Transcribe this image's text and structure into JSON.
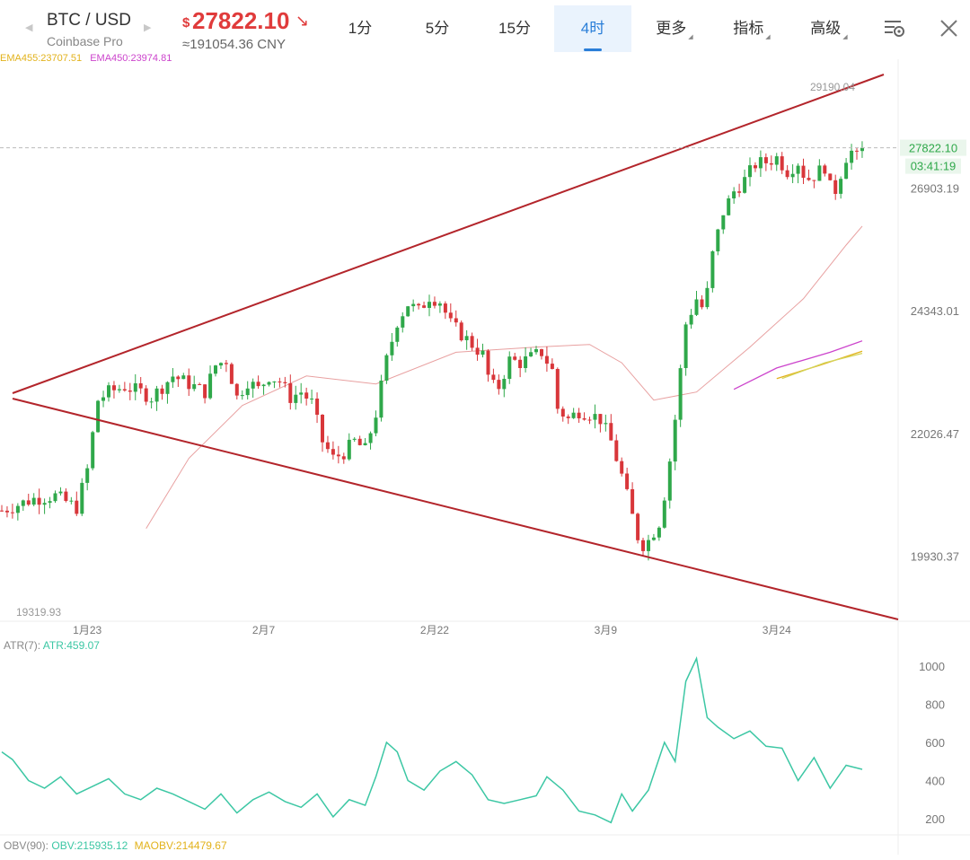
{
  "header": {
    "pair": "BTC / USD",
    "exchange": "Coinbase Pro",
    "price_currency": "$",
    "price": "27822.10",
    "price_direction": "down",
    "price_cny": "≈191054.36 CNY",
    "tabs": [
      {
        "label": "1分",
        "active": false,
        "dropdown": false
      },
      {
        "label": "5分",
        "active": false,
        "dropdown": false
      },
      {
        "label": "15分",
        "active": false,
        "dropdown": false
      },
      {
        "label": "4时",
        "active": true,
        "dropdown": false
      },
      {
        "label": "更多",
        "active": false,
        "dropdown": true
      },
      {
        "label": "指标",
        "active": false,
        "dropdown": true
      },
      {
        "label": "高级",
        "active": false,
        "dropdown": true
      }
    ],
    "icons": [
      "chart-settings-icon",
      "close-icon"
    ]
  },
  "colors": {
    "up": "#2fa84a",
    "down": "#d8363a",
    "accent": "#2a7ed8",
    "trendline": "#b3252b",
    "ema_slow": "#e8a0a0",
    "ema_a": "#e2b21b",
    "ema_b": "#cc44cc",
    "atr": "#3cc7a4"
  },
  "chart_data": [
    {
      "type": "candlestick",
      "title": "",
      "ema_labels": [
        "EMA455:23707.51",
        "EMA450:23974.81"
      ],
      "xlabels": [
        "1月23",
        "2月7",
        "2月22",
        "3月9",
        "3月24"
      ],
      "ylabels": [
        "26903.19",
        "24343.01",
        "22026.47",
        "19930.37"
      ],
      "last_price": "27822.10",
      "countdown": "03:41:19",
      "high_label": "29190.04",
      "low_label": "19319.93",
      "ylim": [
        19319.93,
        29190.04
      ],
      "trendlines": [
        "upper resistance",
        "lower support"
      ],
      "grid": false,
      "close_path": [
        [
          0,
          20700
        ],
        [
          6,
          20900
        ],
        [
          10,
          20950
        ],
        [
          14,
          20750
        ],
        [
          16,
          21400
        ],
        [
          18,
          22650
        ],
        [
          20,
          22800
        ],
        [
          23,
          22900
        ],
        [
          26,
          22800
        ],
        [
          28,
          22700
        ],
        [
          32,
          23100
        ],
        [
          35,
          22950
        ],
        [
          38,
          22800
        ],
        [
          40,
          23300
        ],
        [
          42,
          23400
        ],
        [
          44,
          22700
        ],
        [
          46,
          23000
        ],
        [
          48,
          22850
        ],
        [
          50,
          23100
        ],
        [
          52,
          23000
        ],
        [
          54,
          22700
        ],
        [
          56,
          22800
        ],
        [
          58,
          22600
        ],
        [
          60,
          21900
        ],
        [
          62,
          21600
        ],
        [
          64,
          21700
        ],
        [
          66,
          21900
        ],
        [
          68,
          21750
        ],
        [
          70,
          22400
        ],
        [
          72,
          23400
        ],
        [
          74,
          24150
        ],
        [
          76,
          24500
        ],
        [
          78,
          24350
        ],
        [
          80,
          24650
        ],
        [
          82,
          24550
        ],
        [
          84,
          24100
        ],
        [
          86,
          23900
        ],
        [
          88,
          23700
        ],
        [
          90,
          23500
        ],
        [
          91.5,
          22900
        ],
        [
          93,
          22900
        ],
        [
          95,
          23400
        ],
        [
          97,
          23350
        ],
        [
          99,
          23450
        ],
        [
          101,
          23550
        ],
        [
          103,
          23200
        ],
        [
          104,
          22500
        ],
        [
          106,
          22300
        ],
        [
          108,
          22450
        ],
        [
          110,
          22400
        ],
        [
          112,
          22300
        ],
        [
          114,
          21900
        ],
        [
          116,
          21300
        ],
        [
          118,
          20600
        ],
        [
          119.5,
          20100
        ],
        [
          121,
          20200
        ],
        [
          123,
          20500
        ],
        [
          124.5,
          21200
        ],
        [
          126,
          22300
        ],
        [
          128,
          24100
        ],
        [
          130,
          24600
        ],
        [
          131.5,
          24350
        ],
        [
          133,
          25500
        ],
        [
          135,
          26400
        ],
        [
          137,
          26850
        ],
        [
          139,
          27100
        ],
        [
          141,
          27450
        ],
        [
          143,
          27500
        ],
        [
          145,
          27600
        ],
        [
          147,
          27300
        ],
        [
          149,
          27500
        ],
        [
          150.5,
          27100
        ],
        [
          152,
          27200
        ],
        [
          154,
          27400
        ],
        [
          155.5,
          26700
        ],
        [
          157,
          27250
        ],
        [
          158.5,
          27800
        ],
        [
          160,
          27600
        ],
        [
          161,
          27822
        ]
      ],
      "moving_averages": [
        {
          "name": "",
          "color": "#e8a0a0",
          "points": [
            [
              27,
              20400
            ],
            [
              35,
              21600
            ],
            [
              45,
              22550
            ],
            [
              57,
              23100
            ],
            [
              70,
              22950
            ],
            [
              85,
              23550
            ],
            [
              100,
              23650
            ],
            [
              110,
              23700
            ],
            [
              116,
              23350
            ],
            [
              122,
              22650
            ],
            [
              130,
              22800
            ],
            [
              140,
              23650
            ],
            [
              150,
              24600
            ],
            [
              158,
              25700
            ],
            [
              161,
              26100
            ]
          ]
        },
        {
          "name": "EMA450",
          "color": "#cc44cc",
          "points": [
            [
              137,
              22850
            ],
            [
              145,
              23250
            ],
            [
              155,
              23550
            ],
            [
              161,
              23770
            ]
          ]
        },
        {
          "name": "EMA455",
          "color": "#e2b21b",
          "points": [
            [
              145,
              23050
            ],
            [
              153,
              23300
            ],
            [
              161,
              23570
            ]
          ]
        },
        {
          "name": "",
          "color": "#d4d45a",
          "points": [
            [
              146,
              23050
            ],
            [
              154,
              23350
            ],
            [
              161,
              23530
            ]
          ]
        }
      ]
    },
    {
      "type": "line",
      "title": "",
      "indicator_label": "ATR(7):",
      "value_label": "ATR:459.07",
      "ylabels": [
        "1000",
        "800",
        "600",
        "400",
        "200"
      ],
      "ylim": [
        100,
        1100
      ],
      "x": [
        0,
        2,
        5,
        8,
        11,
        14,
        17,
        20,
        23,
        26,
        29,
        32,
        35,
        38,
        41,
        44,
        47,
        50,
        53,
        56,
        59,
        62,
        65,
        68,
        70,
        72,
        74,
        76,
        79,
        82,
        85,
        88,
        91,
        94,
        97,
        100,
        102,
        105,
        108,
        111,
        114,
        116,
        118,
        121,
        124,
        126,
        128,
        130,
        132,
        134,
        137,
        140,
        143,
        146,
        149,
        152,
        155,
        158,
        161
      ],
      "values": [
        550,
        510,
        400,
        360,
        420,
        330,
        370,
        410,
        330,
        300,
        360,
        330,
        290,
        250,
        330,
        230,
        300,
        340,
        290,
        260,
        330,
        210,
        300,
        270,
        420,
        600,
        550,
        400,
        350,
        450,
        500,
        430,
        300,
        280,
        300,
        320,
        420,
        350,
        240,
        220,
        180,
        330,
        240,
        350,
        600,
        500,
        920,
        1040,
        730,
        680,
        620,
        660,
        580,
        570,
        400,
        520,
        360,
        480,
        459
      ]
    },
    {
      "type": "line",
      "title": "",
      "indicator_label": "OBV(90):",
      "value_label": "OBV:215935.12",
      "secondary_label": "MAOBV:214479.67",
      "series": []
    }
  ]
}
